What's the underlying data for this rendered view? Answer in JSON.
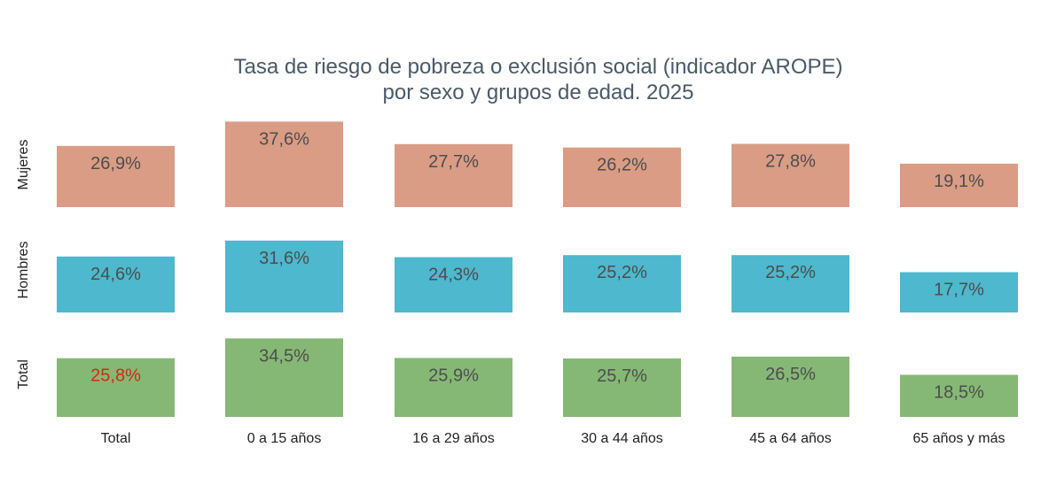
{
  "chart_data": {
    "type": "bar",
    "title": "Tasa de riesgo de pobreza o exclusión social (indicador AROPE)",
    "subtitle": "por sexo y grupos de edad. 2025",
    "categories": [
      "Total",
      "0 a 15 años",
      "16 a 29 años",
      "30 a 44 años",
      "45 a 64 años",
      "65 años y más"
    ],
    "series": [
      {
        "name": "Mujeres",
        "color": "#DA9C85",
        "values": [
          26.9,
          37.6,
          27.7,
          26.2,
          27.8,
          19.1
        ],
        "labels": [
          "26,9%",
          "37,6%",
          "27,7%",
          "26,2%",
          "27,8%",
          "19,1%"
        ]
      },
      {
        "name": "Hombres",
        "color": "#4DB8CE",
        "values": [
          24.6,
          31.6,
          24.3,
          25.2,
          25.2,
          17.7
        ],
        "labels": [
          "24,6%",
          "31,6%",
          "24,3%",
          "25,2%",
          "25,2%",
          "17,7%"
        ]
      },
      {
        "name": "Total",
        "color": "#86B875",
        "values": [
          25.8,
          34.5,
          25.9,
          25.7,
          26.5,
          18.5
        ],
        "labels": [
          "25,8%",
          "34,5%",
          "25,9%",
          "25,7%",
          "26,5%",
          "18,5%"
        ]
      }
    ],
    "highlight_label": {
      "series": "Total",
      "category": "Total",
      "color": "#D42A12"
    },
    "label_color": "#4D4D4D",
    "ylim": [
      0,
      40
    ],
    "grid": false,
    "legend": "none",
    "layout": "small-multiples rows by sex"
  }
}
